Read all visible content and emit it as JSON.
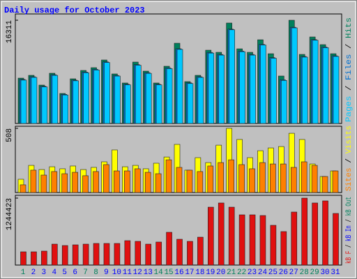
{
  "chart_data": [
    {
      "type": "bar",
      "title": "Daily usage for October 2023",
      "legend_separator": " / ",
      "ylim": [
        0,
        16311
      ],
      "yticks": [
        16311
      ],
      "series": [
        {
          "name": "Pages",
          "color": "#00c8ff",
          "values": [
            6850,
            7280,
            5780,
            7600,
            4500,
            6740,
            8020,
            8450,
            9630,
            7490,
            6100,
            9200,
            7920,
            6100,
            8670,
            11700,
            6310,
            7280,
            11120,
            10800,
            14800,
            11340,
            10800,
            12400,
            10300,
            6800,
            15100,
            10480,
            13150,
            11980,
            10590
          ]
        },
        {
          "name": "Files",
          "color": "#0070d0",
          "values": [
            6950,
            7380,
            5880,
            7700,
            4600,
            6840,
            8120,
            8550,
            9730,
            7590,
            6200,
            9300,
            8020,
            6200,
            8770,
            11800,
            6410,
            7380,
            11220,
            10900,
            14900,
            11440,
            10900,
            12500,
            10400,
            6900,
            15200,
            10580,
            13250,
            12080,
            10690
          ]
        },
        {
          "name": "Hits",
          "color": "#00805c",
          "values": [
            7163,
            7604,
            6061,
            7934,
            4739,
            7053,
            8375,
            8816,
            10028,
            7824,
            6392,
            9698,
            8265,
            6392,
            9036,
            12673,
            6612,
            7604,
            11571,
            11240,
            15869,
            11791,
            11240,
            13224,
            11020,
            7494,
            16311,
            10910,
            13665,
            12453,
            11020
          ]
        }
      ]
    },
    {
      "type": "bar",
      "legend_separator": " / ",
      "ylim": [
        0,
        508
      ],
      "yticks": [
        508
      ],
      "series": [
        {
          "name": "Sites",
          "color": "#ff8000",
          "values": [
            61,
            177,
            138,
            166,
            149,
            160,
            133,
            166,
            221,
            171,
            171,
            188,
            160,
            149,
            259,
            199,
            177,
            166,
            210,
            237,
            259,
            221,
            188,
            237,
            226,
            226,
            199,
            243,
            215,
            127,
            171
          ]
        },
        {
          "name": "Visits",
          "color": "#ffff00",
          "values": [
            105,
            215,
            182,
            204,
            188,
            210,
            182,
            199,
            243,
            337,
            204,
            215,
            188,
            232,
            281,
            381,
            177,
            276,
            237,
            375,
            508,
            420,
            276,
            331,
            353,
            364,
            469,
            420,
            226,
            127,
            171
          ]
        }
      ]
    },
    {
      "type": "bar",
      "legend_separator": " / ",
      "ylim": [
        0,
        1244423
      ],
      "yticks": [
        1244423
      ],
      "categories": [
        "1",
        "2",
        "3",
        "4",
        "5",
        "6",
        "7",
        "8",
        "9",
        "10",
        "11",
        "12",
        "13",
        "14",
        "15",
        "16",
        "17",
        "18",
        "19",
        "20",
        "21",
        "22",
        "23",
        "24",
        "25",
        "26",
        "27",
        "28",
        "29",
        "30",
        "31"
      ],
      "category_colors": [
        "#00805c",
        "#0000ff",
        "#0000ff",
        "#0000ff",
        "#0000ff",
        "#0000ff",
        "#00805c",
        "#00805c",
        "#0000ff",
        "#0000ff",
        "#0000ff",
        "#0000ff",
        "#0000ff",
        "#00805c",
        "#00805c",
        "#0000ff",
        "#0000ff",
        "#0000ff",
        "#0000ff",
        "#0000ff",
        "#00805c",
        "#00805c",
        "#0000ff",
        "#0000ff",
        "#0000ff",
        "#0000ff",
        "#0000ff",
        "#00805c",
        "#00805c",
        "#0000ff",
        "#0000ff"
      ],
      "series": [
        {
          "name": "kB F",
          "color": "#e01010",
          "values": [
            246297,
            246297,
            259260,
            388890,
            362964,
            375927,
            388890,
            401853,
            401853,
            401853,
            453705,
            440742,
            388890,
            427779,
            609261,
            479631,
            440742,
            518520,
            1075929,
            1153707,
            1075929,
            933336,
            933336,
            920373,
            738891,
            622224,
            985188,
            1244423,
            1153707,
            1192596,
            959262
          ]
        }
      ],
      "legend_extra": [
        {
          "name": "kB In",
          "color": "#0000ff"
        },
        {
          "name": "kB Out",
          "color": "#00805c"
        }
      ]
    }
  ]
}
